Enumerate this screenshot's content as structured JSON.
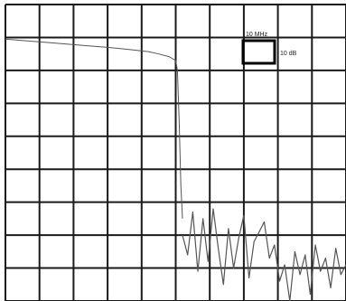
{
  "chart_data": {
    "type": "line",
    "title": "",
    "xlabel": "",
    "ylabel": "",
    "grid": true,
    "x_divisions": 10,
    "y_divisions": 9,
    "xlim": [
      0,
      10
    ],
    "ylim": [
      -90,
      0
    ],
    "scale_box": {
      "horizontal_label": "10 MHz",
      "vertical_label": "10 dB"
    },
    "series": [
      {
        "x": [
          0,
          0.6,
          1.2,
          1.8,
          2.4,
          3.0,
          3.6,
          4.2,
          4.5,
          4.8,
          5.0,
          5.05,
          5.1,
          5.15,
          5.2
        ],
        "y": [
          -10.5,
          -11.0,
          -11.5,
          -12.0,
          -12.5,
          -13.0,
          -13.6,
          -14.3,
          -15.0,
          -15.8,
          -17.0,
          -20.0,
          -35.0,
          -55.0,
          -65.0
        ]
      },
      {
        "x": [
          5.2,
          5.35,
          5.5,
          5.65,
          5.8,
          5.95,
          6.1,
          6.25,
          6.4,
          6.55,
          6.7,
          6.85,
          7.0,
          7.15,
          7.3,
          7.45,
          7.6,
          7.75,
          7.9,
          8.05,
          8.2,
          8.35,
          8.5,
          8.65,
          8.8,
          8.95,
          9.1,
          9.25,
          9.4,
          9.55,
          9.7,
          9.85,
          10.0
        ],
        "y": [
          -70,
          -76,
          -63,
          -81,
          -65,
          -78,
          -62,
          -74,
          -85,
          -68,
          -80,
          -71,
          -64,
          -83,
          -72,
          -69,
          -66,
          -77,
          -73,
          -84,
          -79,
          -90,
          -75,
          -82,
          -76,
          -88,
          -73,
          -81,
          -77,
          -86,
          -74,
          -82,
          -79
        ]
      }
    ]
  }
}
